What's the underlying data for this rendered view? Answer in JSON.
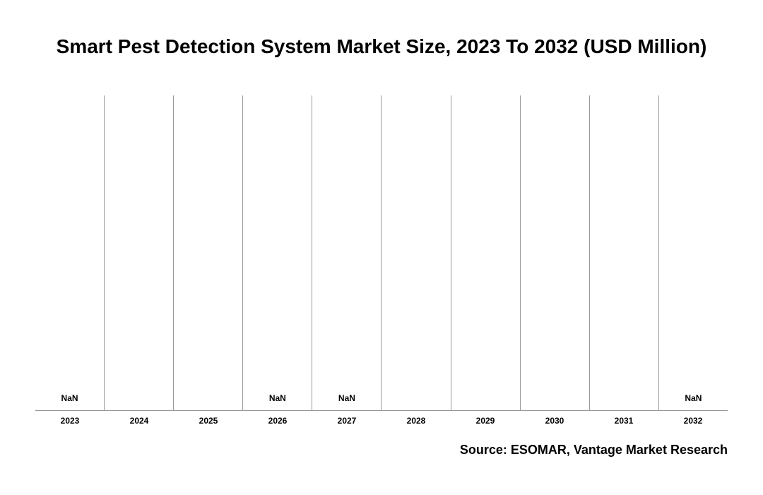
{
  "chart": {
    "type": "bar",
    "title": "Smart Pest Detection System Market Size, 2023 To 2032 (USD Million)",
    "title_fontsize": 28,
    "title_color": "#000000",
    "background_color": "#ffffff",
    "axis_color": "#999999",
    "gridline_color": "#999999",
    "source": "Source: ESOMAR, Vantage Market Research",
    "source_fontsize": 18,
    "source_color": "#000000",
    "categories": [
      "2023",
      "2024",
      "2025",
      "2026",
      "2027",
      "2028",
      "2029",
      "2030",
      "2031",
      "2032"
    ],
    "category_fontsize": 12,
    "category_color": "#000000",
    "value_label_fontsize": 12,
    "value_label_color": "#000000",
    "columns": [
      {
        "year": "2023",
        "value_label": "NaN",
        "show_label": true
      },
      {
        "year": "2024",
        "value_label": "",
        "show_label": false
      },
      {
        "year": "2025",
        "value_label": "",
        "show_label": false
      },
      {
        "year": "2026",
        "value_label": "NaN",
        "show_label": true
      },
      {
        "year": "2027",
        "value_label": "NaN",
        "show_label": true
      },
      {
        "year": "2028",
        "value_label": "",
        "show_label": false
      },
      {
        "year": "2029",
        "value_label": "",
        "show_label": false
      },
      {
        "year": "2030",
        "value_label": "",
        "show_label": false
      },
      {
        "year": "2031",
        "value_label": "",
        "show_label": false
      },
      {
        "year": "2032",
        "value_label": "NaN",
        "show_label": true
      }
    ]
  }
}
